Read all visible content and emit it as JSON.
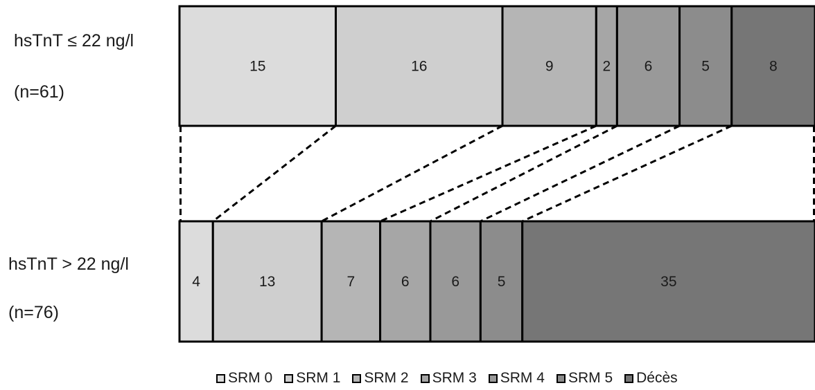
{
  "chart_data": {
    "type": "bar",
    "orientation": "horizontal-stacked",
    "categories": [
      "SRM 0",
      "SRM 1",
      "SRM 2",
      "SRM 3",
      "SRM 4",
      "SRM 5",
      "Décès"
    ],
    "rows": [
      {
        "label": "hsTnT ≤ 22 ng/l",
        "sublabel": "(n=61)",
        "values": [
          15,
          16,
          9,
          2,
          6,
          5,
          8
        ]
      },
      {
        "label": "hsTnT > 22 ng/l",
        "sublabel": "(n=76)",
        "values": [
          4,
          13,
          7,
          6,
          6,
          5,
          35
        ]
      }
    ],
    "colors": [
      "#dcdcdc",
      "#cfcfcf",
      "#b5b5b5",
      "#a6a6a6",
      "#999999",
      "#8c8c8c",
      "#767676"
    ],
    "legend": {
      "position": "bottom",
      "items": [
        "SRM 0",
        "SRM 1",
        "SRM 2",
        "SRM 3",
        "SRM 4",
        "SRM 5",
        "Décès"
      ]
    }
  }
}
